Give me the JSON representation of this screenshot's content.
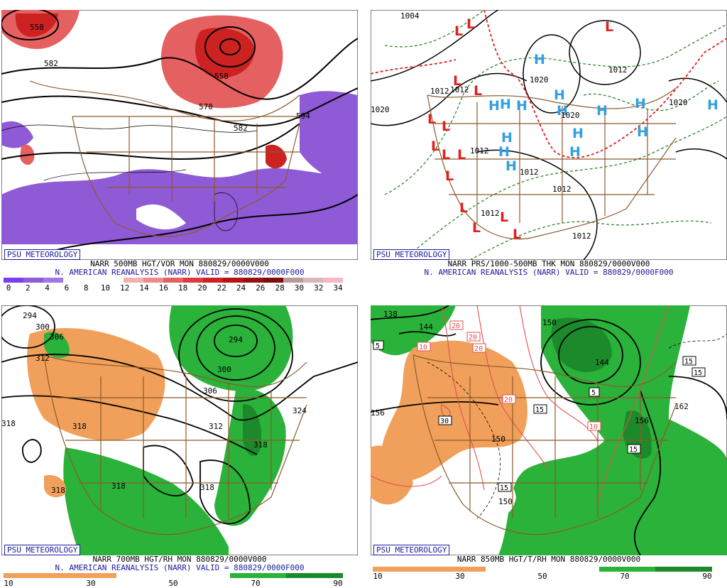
{
  "colors": {
    "border": "#8b5a2b",
    "contour": "#000000",
    "vorticity": [
      "#7a3df0",
      "#8f5ad6",
      "#a078e6",
      "#ffffff",
      "#ffffff",
      "#ffffff",
      "#f4b0b0",
      "#ee8a8a",
      "#e56060",
      "#da3c3c",
      "#cc2222",
      "#b21414",
      "#951010",
      "#7e0c0c",
      "#b79a9a",
      "#dcb6b6",
      "#f6b7c8"
    ],
    "rh": [
      "#f0a05a",
      "#f0a05a",
      "#ffffff",
      "#ffffff",
      "#2ab23a",
      "#1c8a2a"
    ],
    "pressure_low": "#e02020",
    "pressure_high": "#30a0e0",
    "thickness": "#2a8a2a",
    "thickness_warm": "#e02020"
  },
  "panels": [
    {
      "badge": "PSU METEOROLOGY",
      "line1": "NARR 500MB HGT/VOR MON 880829/0000V000",
      "line2": "N. AMERICAN REANALYSIS (NARR) VALID = 880829/0000F000",
      "colorbar_ticks": [
        "0",
        "2",
        "4",
        "6",
        "8",
        "10",
        "12",
        "14",
        "16",
        "18",
        "20",
        "22",
        "24",
        "26",
        "28",
        "30",
        "32",
        "34"
      ],
      "contour_labels": [
        "558",
        "582",
        "558",
        "570",
        "594",
        "582"
      ]
    },
    {
      "badge": "PSU METEOROLOGY",
      "line1": "NARR PRS/1000-500MB THK MON 880829/0000V000",
      "line2": "N. AMERICAN REANALYSIS (NARR) VALID = 880829/0000F000",
      "contour_labels": [
        "1004",
        "1012",
        "1020",
        "1012",
        "1020",
        "1012",
        "1020",
        "1012",
        "1012",
        "1020",
        "1012",
        "1012",
        "1012"
      ],
      "markers": [
        "L",
        "H"
      ]
    },
    {
      "badge": "PSU METEOROLOGY",
      "line1": "NARR 700MB HGT/RH MON 880829/0000V000",
      "line2": "N. AMERICAN REANALYSIS (NARR) VALID = 880829/0000F000",
      "colorbar_ticks": [
        "10",
        "30",
        "50",
        "70",
        "90"
      ],
      "contour_labels": [
        "294",
        "300",
        "306",
        "312",
        "294",
        "300",
        "306",
        "312",
        "324",
        "318",
        "318",
        "318",
        "318",
        "318",
        "318"
      ]
    },
    {
      "badge": "PSU METEOROLOGY",
      "line1": "NARR 850MB HGT/T/RH MON 880829/0000V000",
      "colorbar_ticks": [
        "10",
        "30",
        "50",
        "70",
        "90"
      ],
      "contour_labels": [
        "138",
        "144",
        "150",
        "144",
        "156",
        "162",
        "156",
        "150",
        "150"
      ],
      "temp_labels": [
        "5",
        "10",
        "20",
        "20",
        "20",
        "20",
        "30",
        "15",
        "5",
        "15",
        "15",
        "15",
        "10",
        "15"
      ]
    }
  ]
}
